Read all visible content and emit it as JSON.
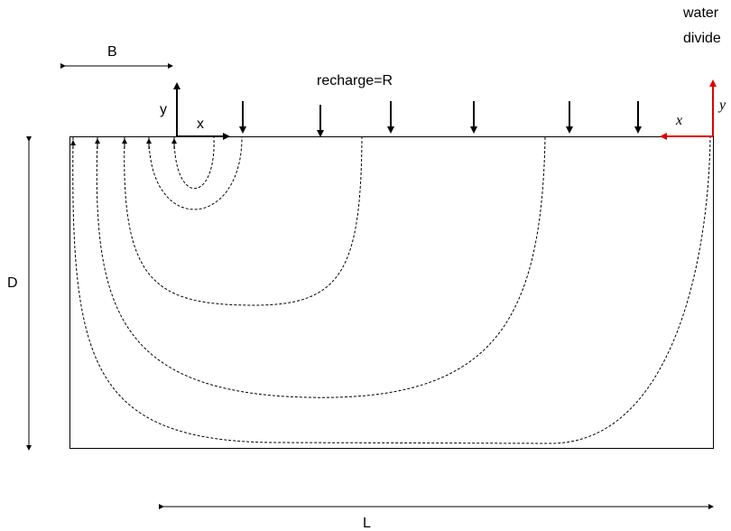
{
  "labels": {
    "B": "B",
    "D": "D",
    "L": "L",
    "recharge": "recharge=R",
    "water_divide_line1": "water",
    "water_divide_line2": "divide",
    "left_axis_x": "x",
    "left_axis_y": "y",
    "right_axis_x": "x",
    "right_axis_y": "y"
  },
  "colors": {
    "outline": "#000000",
    "right_axes": "#e00000",
    "background": "#ffffff"
  },
  "legend": {
    "flow_lines": "dashed",
    "recharge_arrows": "downward",
    "discharge_arrows": "upward"
  }
}
